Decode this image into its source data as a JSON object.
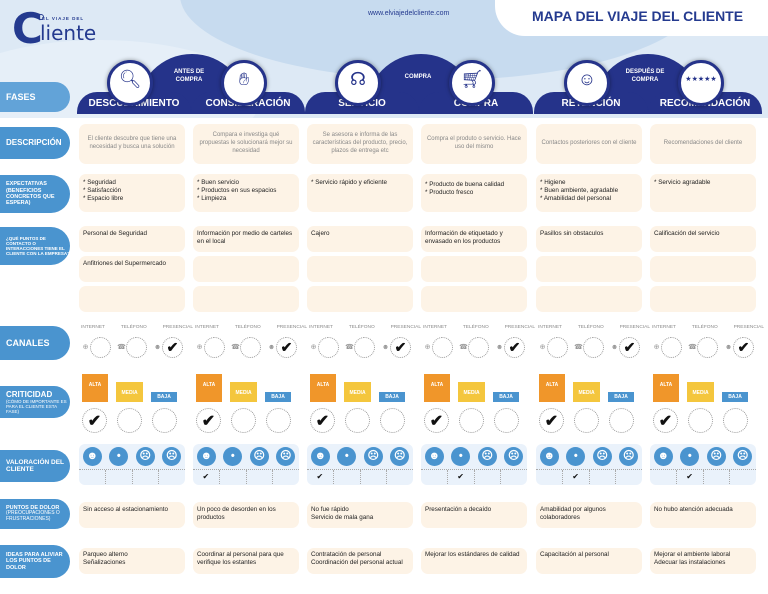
{
  "header": {
    "logo_top": "EL VIAJE DEL",
    "logo_main": "Cliente",
    "url": "www.elviajedelcliente.com",
    "title": "MAPA DEL VIAJE DEL CLIENTE"
  },
  "groups": [
    {
      "label_line1": "ANTES DE",
      "label_line2": "COMPRA"
    },
    {
      "label_line1": "COMPRA",
      "label_line2": ""
    },
    {
      "label_line1": "DESPUÉS DE",
      "label_line2": "COMPRA"
    }
  ],
  "phases": [
    {
      "name": "DESCUBRIMIENTO",
      "icon": "magnifier-icon"
    },
    {
      "name": "CONSIDERACIÓN",
      "icon": "hand-icon"
    },
    {
      "name": "SERVICIO",
      "icon": "headset-icon"
    },
    {
      "name": "COMPRA",
      "icon": "cart-icon"
    },
    {
      "name": "RETENCIÓN",
      "icon": "person-stars-icon"
    },
    {
      "name": "RECOMENDACIÓN",
      "icon": "stars-icon"
    }
  ],
  "row_labels": {
    "fases": "FASES",
    "descripcion": "DESCRIPCIÓN",
    "expectativas": "EXPECTATIVAS (BENEFICIOS CONCRETOS QUE ESPERA)",
    "puntos_contacto": "¿QUÉ PUNTOS DE CONTACTO O INTERACCIONES TIENE EL CLIENTE CON LA EMPRESA?",
    "canales": "CANALES",
    "criticidad": "CRITICIDAD",
    "criticidad_sub": "(CÓMO DE IMPORTANTE ES PARA EL CLIENTE ESTA FASE)",
    "valoracion": "VALORACIÓN DEL CLIENTE",
    "puntos_dolor": "PUNTOS DE DOLOR",
    "puntos_dolor_sub": "(PREOCUPACIONES O FRUSTRACIONES)",
    "ideas": "IDEAS PARA ALIVIAR LOS PUNTOS DE DOLOR"
  },
  "descripcion": [
    "El cliente descubre que tiene una necesidad y busca una solución",
    "Compara e investiga qué propuestas le solucionará mejor su necesidad",
    "Se asesora e informa de las características del producto, precio, plazos de entrega etc",
    "Compra el produto o servicio. Hace uso del mismo",
    "Contactos posteriores con el cliente",
    "Recomendaciones del cliente"
  ],
  "expectativas": [
    [
      "* Seguridad",
      "* Satisfacción",
      "* Espacio libre"
    ],
    [
      "* Buen servicio",
      "* Productos en sus espacios",
      "* Limpieza"
    ],
    [
      "* Servicio rápido y eficiente"
    ],
    [
      "* Producto de buena calidad",
      "* Producto fresco"
    ],
    [
      "* Higiene",
      "* Buen ambiente, agradable",
      "* Amabilidad del personal"
    ],
    [
      "* Servicio agradable"
    ]
  ],
  "puntos_contacto": [
    [
      "Personal de Seguridad",
      "Anfitriones del Supermercado",
      ""
    ],
    [
      "Información por medio de carteles en el local",
      "",
      ""
    ],
    [
      "Cajero",
      "",
      ""
    ],
    [
      "Información de etiquetado y envasado en los productos",
      "",
      ""
    ],
    [
      "Pasillos sin obstaculos",
      "",
      ""
    ],
    [
      "Calificación del servicio",
      "",
      ""
    ]
  ],
  "canales": {
    "headers": [
      "INTERNET",
      "TELÉFONO",
      "PRESENCIAL"
    ],
    "icons": [
      "globe-icon",
      "phone-icon",
      "people-icon"
    ],
    "check_mark": "✔",
    "selected": [
      [
        false,
        false,
        true
      ],
      [
        false,
        false,
        true
      ],
      [
        false,
        false,
        true
      ],
      [
        false,
        false,
        true
      ],
      [
        false,
        false,
        true
      ],
      [
        false,
        false,
        true
      ]
    ]
  },
  "criticidad": {
    "levels": [
      "ALTA",
      "MEDIA",
      "BAJA"
    ],
    "colors": {
      "alta": "#f0962a",
      "media": "#f4c63d",
      "baja": "#4a94cf"
    },
    "selected": [
      "ALTA",
      "ALTA",
      "ALTA",
      "ALTA",
      "ALTA",
      "ALTA"
    ]
  },
  "valoracion": {
    "faces": [
      "very-happy-face-icon",
      "neutral-face-icon",
      "sad-face-icon",
      "angry-face-icon"
    ],
    "selected_index": [
      null,
      0,
      0,
      1,
      1,
      1
    ]
  },
  "puntos_dolor": [
    "Sin acceso al estacionamiento",
    "Un poco de desorden en los productos",
    "No fue rápido\nServicio de mala gana",
    "Presentación a decaído",
    "Amabilidad por algunos colaboradores",
    "No hubo atención adecuada"
  ],
  "ideas": [
    "Parqueo alterno\nSeñalizaciones",
    "Coordinar al personal para que verifique los estantes",
    "Contratación de personal\nCoordinación del personal actual",
    "Mejorar los estándares de calidad",
    "Capacitación al personal",
    "Mejorar el ambiente laboral\nAdecuar las instalaciones"
  ],
  "colors": {
    "brand_navy": "#25338a",
    "label_blue": "#4a94cf",
    "cell_bg": "#fdf3e6",
    "header_bg": "#dde9f5"
  }
}
